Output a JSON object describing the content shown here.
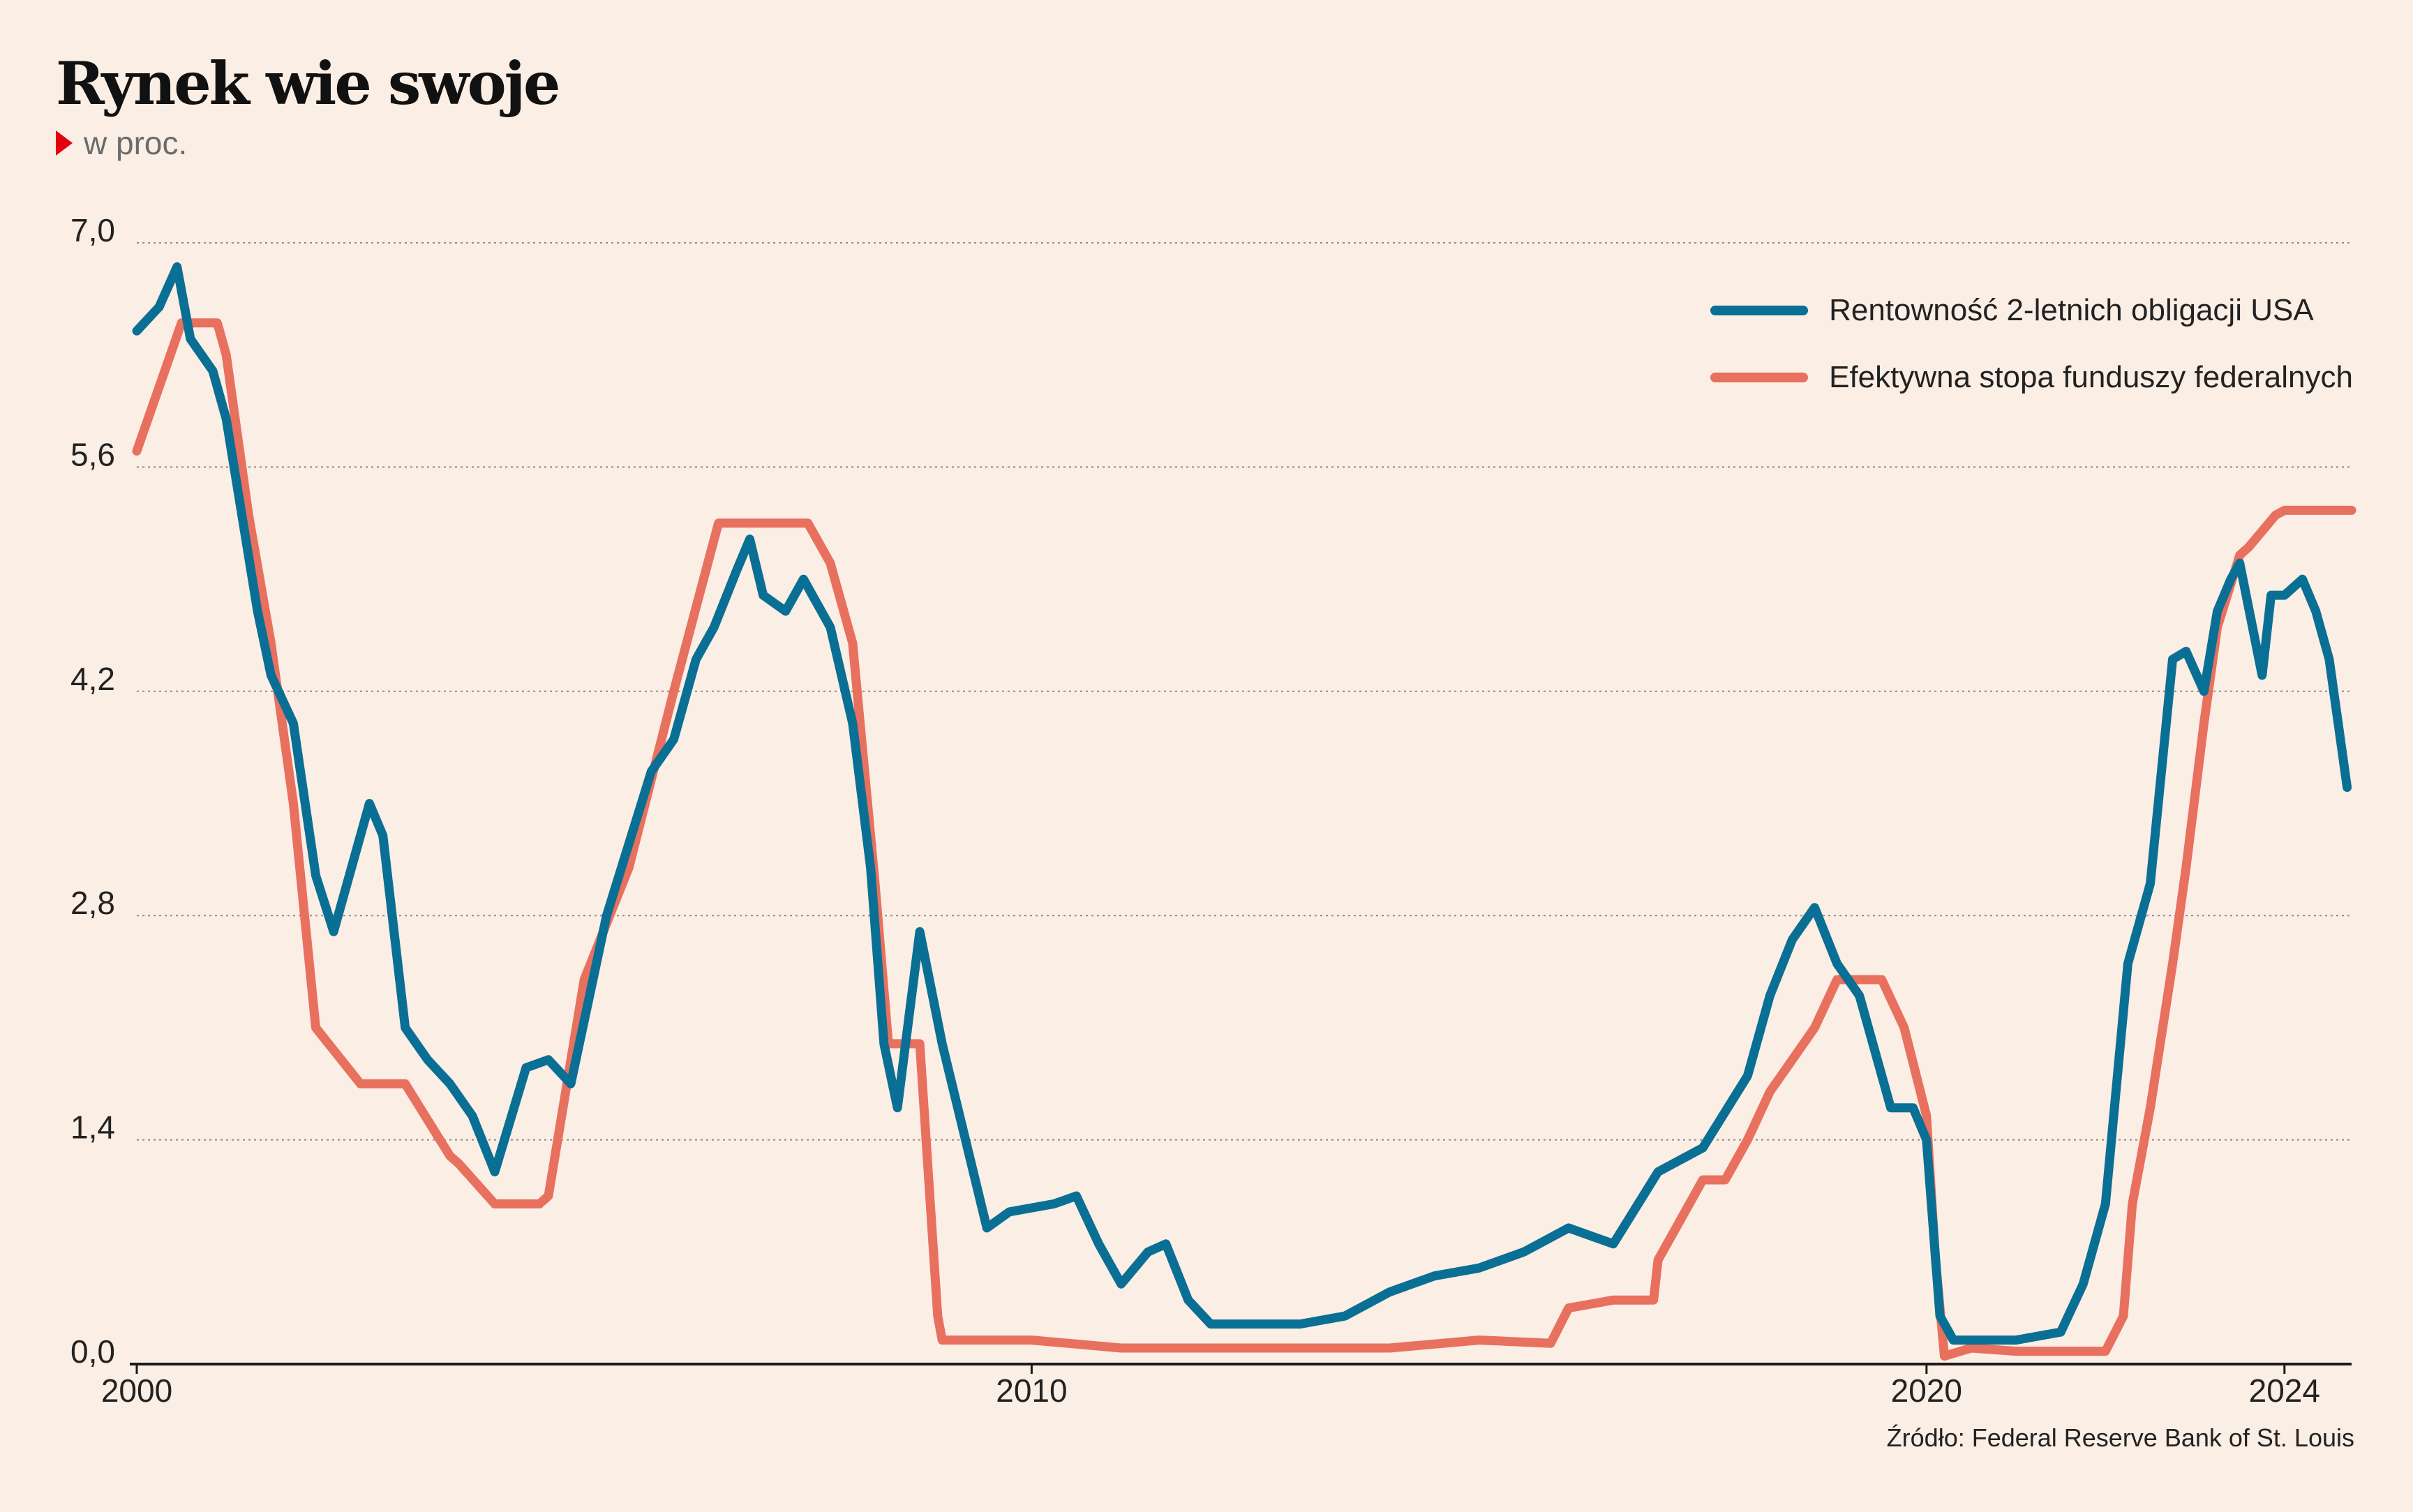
{
  "title": "Rynek wie swoje",
  "subtitle": "w proc.",
  "source": "Źródło: Federal Reserve Bank of St. Louis",
  "chart_data": {
    "type": "line",
    "ylim": [
      0,
      7
    ],
    "xlim": [
      2000,
      2024.75
    ],
    "yticks": [
      0,
      1.4,
      2.8,
      4.2,
      5.6,
      7.0
    ],
    "ytick_labels": [
      "0,0",
      "1,4",
      "2,8",
      "4,2",
      "5,6",
      "7,0"
    ],
    "xticks": [
      2000,
      2010,
      2020,
      2024
    ],
    "xtick_labels": [
      "2000",
      "2010",
      "2020",
      "2024"
    ],
    "grid": "horizontal dotted",
    "legend_position": "top-right",
    "series": [
      {
        "name": "Rentowność 2-letnich obligacji USA",
        "color": "#0a6f94",
        "x": [
          2000.0,
          2000.25,
          2000.45,
          2000.6,
          2000.85,
          2001.0,
          2001.35,
          2001.5,
          2001.75,
          2002.0,
          2002.2,
          2002.4,
          2002.6,
          2002.75,
          2003.0,
          2003.25,
          2003.5,
          2003.75,
          2004.0,
          2004.35,
          2004.6,
          2004.85,
          2005.25,
          2005.75,
          2006.0,
          2006.25,
          2006.45,
          2006.7,
          2006.85,
          2007.0,
          2007.25,
          2007.45,
          2007.75,
          2008.0,
          2008.2,
          2008.35,
          2008.5,
          2008.75,
          2009.0,
          2009.5,
          2009.75,
          2010.25,
          2010.5,
          2010.75,
          2011.0,
          2011.3,
          2011.5,
          2011.75,
          2012.0,
          2013.0,
          2013.5,
          2014.0,
          2014.5,
          2015.0,
          2015.5,
          2016.0,
          2016.5,
          2017.0,
          2017.5,
          2018.0,
          2018.25,
          2018.5,
          2018.75,
          2019.0,
          2019.25,
          2019.6,
          2019.85,
          2020.0,
          2020.15,
          2020.3,
          2020.5,
          2021.0,
          2021.5,
          2021.75,
          2022.0,
          2022.25,
          2022.5,
          2022.75,
          2022.9,
          2023.1,
          2023.25,
          2023.4,
          2023.5,
          2023.75,
          2023.85,
          2024.0,
          2024.2,
          2024.35,
          2024.5,
          2024.6,
          2024.7
        ],
        "values": [
          6.45,
          6.6,
          6.85,
          6.4,
          6.2,
          5.9,
          4.7,
          4.3,
          4.0,
          3.05,
          2.7,
          3.1,
          3.5,
          3.3,
          2.1,
          1.9,
          1.75,
          1.55,
          1.2,
          1.85,
          1.9,
          1.75,
          2.8,
          3.7,
          3.9,
          4.4,
          4.6,
          4.95,
          5.15,
          4.8,
          4.7,
          4.9,
          4.6,
          4.0,
          3.1,
          2.0,
          1.6,
          2.7,
          2.0,
          0.85,
          0.95,
          1.0,
          1.05,
          0.75,
          0.5,
          0.7,
          0.75,
          0.4,
          0.25,
          0.25,
          0.3,
          0.45,
          0.55,
          0.6,
          0.7,
          0.85,
          0.75,
          1.2,
          1.35,
          1.8,
          2.3,
          2.65,
          2.85,
          2.5,
          2.3,
          1.6,
          1.6,
          1.4,
          0.3,
          0.15,
          0.15,
          0.15,
          0.2,
          0.5,
          1.0,
          2.5,
          3.0,
          4.4,
          4.45,
          4.2,
          4.7,
          4.9,
          5.0,
          4.3,
          4.8,
          4.8,
          4.9,
          4.7,
          4.4,
          4.0,
          3.6
        ]
      },
      {
        "name": "Efektywna stopa funduszy federalnych",
        "color": "#e8705e",
        "x": [
          2000.0,
          2000.5,
          2000.9,
          2001.0,
          2001.25,
          2001.5,
          2001.75,
          2002.0,
          2002.5,
          2002.85,
          2003.0,
          2003.5,
          2003.6,
          2004.0,
          2004.5,
          2004.6,
          2005.0,
          2005.5,
          2006.0,
          2006.5,
          2007.0,
          2007.5,
          2007.75,
          2008.0,
          2008.25,
          2008.4,
          2008.75,
          2008.95,
          2009.0,
          2009.5,
          2010.0,
          2011.0,
          2012.0,
          2013.0,
          2014.0,
          2015.0,
          2015.8,
          2016.0,
          2016.5,
          2016.95,
          2017.0,
          2017.25,
          2017.5,
          2017.75,
          2018.0,
          2018.25,
          2018.5,
          2018.75,
          2019.0,
          2019.25,
          2019.5,
          2019.75,
          2020.0,
          2020.1,
          2020.2,
          2020.5,
          2021.0,
          2021.5,
          2022.0,
          2022.2,
          2022.3,
          2022.5,
          2022.75,
          2022.9,
          2023.1,
          2023.25,
          2023.5,
          2023.6,
          2023.9,
          2024.0,
          2024.5,
          2024.75
        ],
        "values": [
          5.7,
          6.5,
          6.5,
          6.3,
          5.3,
          4.5,
          3.5,
          2.1,
          1.75,
          1.75,
          1.75,
          1.3,
          1.25,
          1.0,
          1.0,
          1.05,
          2.4,
          3.1,
          4.2,
          5.25,
          5.25,
          5.25,
          5.0,
          4.5,
          3.0,
          2.0,
          2.0,
          0.3,
          0.15,
          0.15,
          0.15,
          0.1,
          0.1,
          0.1,
          0.1,
          0.15,
          0.13,
          0.35,
          0.4,
          0.4,
          0.65,
          0.9,
          1.15,
          1.15,
          1.4,
          1.7,
          1.9,
          2.1,
          2.4,
          2.4,
          2.4,
          2.1,
          1.55,
          0.65,
          0.05,
          0.1,
          0.08,
          0.08,
          0.08,
          0.3,
          1.0,
          1.6,
          2.5,
          3.1,
          4.0,
          4.6,
          5.05,
          5.1,
          5.3,
          5.33,
          5.33,
          5.33
        ]
      }
    ]
  }
}
